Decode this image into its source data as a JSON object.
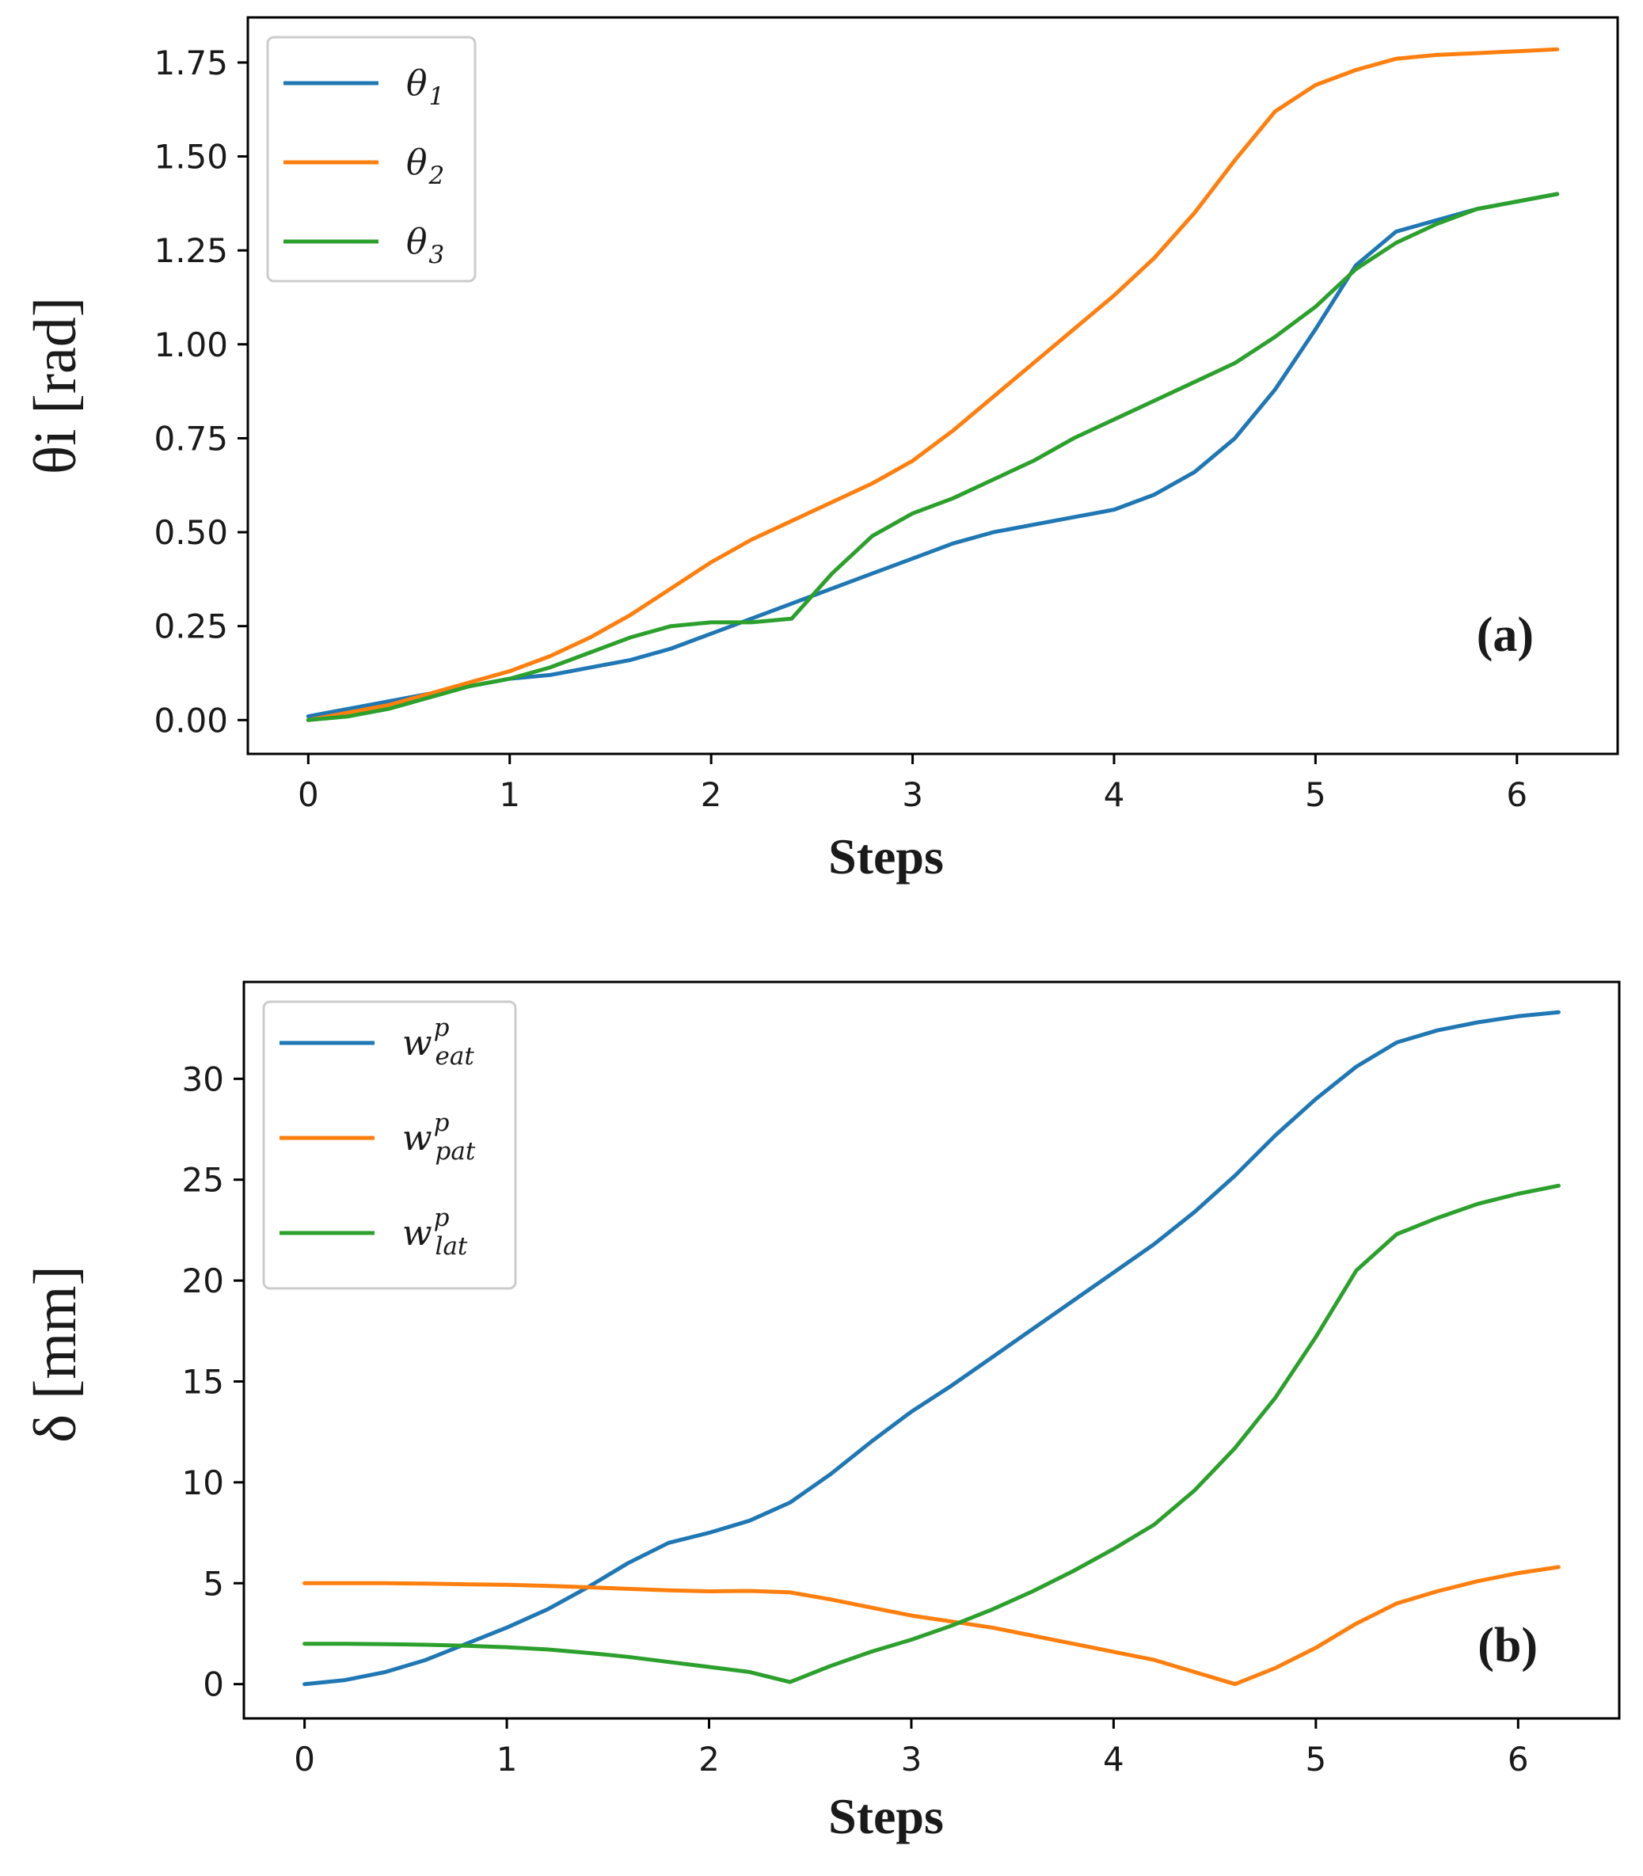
{
  "chart_data": [
    {
      "type": "line",
      "panel_label": "(a)",
      "xlabel": "Steps",
      "ylabel": "θi [rad]",
      "xlim": [
        -0.3,
        6.5
      ],
      "ylim": [
        -0.09,
        1.87
      ],
      "xticks": [
        "0",
        "1",
        "2",
        "3",
        "4",
        "5",
        "6"
      ],
      "yticks": [
        "0.00",
        "0.25",
        "0.50",
        "0.75",
        "1.00",
        "1.25",
        "1.50",
        "1.75"
      ],
      "legend_position": "top-left",
      "x": [
        0,
        0.2,
        0.4,
        0.6,
        0.8,
        1.0,
        1.2,
        1.4,
        1.6,
        1.8,
        2.0,
        2.2,
        2.4,
        2.6,
        2.8,
        3.0,
        3.2,
        3.4,
        3.6,
        3.8,
        4.0,
        4.2,
        4.4,
        4.6,
        4.8,
        5.0,
        5.2,
        5.4,
        5.6,
        5.8,
        6.0,
        6.2
      ],
      "series": [
        {
          "name": "θ",
          "subscript": "1",
          "color": "#1f77b4",
          "values": [
            0.01,
            0.03,
            0.05,
            0.07,
            0.09,
            0.11,
            0.12,
            0.14,
            0.16,
            0.19,
            0.23,
            0.27,
            0.31,
            0.35,
            0.39,
            0.43,
            0.47,
            0.5,
            0.52,
            0.54,
            0.56,
            0.6,
            0.66,
            0.75,
            0.88,
            1.04,
            1.21,
            1.3,
            1.33,
            1.36,
            1.38,
            1.4
          ]
        },
        {
          "name": "θ",
          "subscript": "2",
          "color": "#ff7f0e",
          "values": [
            0.0,
            0.02,
            0.04,
            0.07,
            0.1,
            0.13,
            0.17,
            0.22,
            0.28,
            0.35,
            0.42,
            0.48,
            0.53,
            0.58,
            0.63,
            0.69,
            0.77,
            0.86,
            0.95,
            1.04,
            1.13,
            1.23,
            1.35,
            1.49,
            1.62,
            1.69,
            1.73,
            1.76,
            1.77,
            1.775,
            1.78,
            1.785
          ]
        },
        {
          "name": "θ",
          "subscript": "3",
          "color": "#2ca02c",
          "values": [
            0.0,
            0.01,
            0.03,
            0.06,
            0.09,
            0.11,
            0.14,
            0.18,
            0.22,
            0.25,
            0.26,
            0.26,
            0.27,
            0.39,
            0.49,
            0.55,
            0.59,
            0.64,
            0.69,
            0.75,
            0.8,
            0.85,
            0.9,
            0.95,
            1.02,
            1.1,
            1.2,
            1.27,
            1.32,
            1.36,
            1.38,
            1.4
          ]
        }
      ]
    },
    {
      "type": "line",
      "panel_label": "(b)",
      "xlabel": "Steps",
      "ylabel": "δ [mm]",
      "xlim": [
        -0.3,
        6.5
      ],
      "ylim": [
        -1.7,
        34.8
      ],
      "xticks": [
        "0",
        "1",
        "2",
        "3",
        "4",
        "5",
        "6"
      ],
      "yticks": [
        "0",
        "5",
        "10",
        "15",
        "20",
        "25",
        "30"
      ],
      "legend_position": "top-left",
      "x": [
        0,
        0.2,
        0.4,
        0.6,
        0.8,
        1.0,
        1.2,
        1.4,
        1.6,
        1.8,
        2.0,
        2.2,
        2.4,
        2.6,
        2.8,
        3.0,
        3.2,
        3.4,
        3.6,
        3.8,
        4.0,
        4.2,
        4.4,
        4.6,
        4.8,
        5.0,
        5.2,
        5.4,
        5.6,
        5.8,
        6.0,
        6.2
      ],
      "series": [
        {
          "name": "w",
          "superscript": "p",
          "subscript": "eat",
          "color": "#1f77b4",
          "values": [
            0.0,
            0.2,
            0.6,
            1.2,
            2.0,
            2.8,
            3.7,
            4.8,
            6.0,
            7.0,
            7.5,
            8.1,
            9.0,
            10.4,
            12.0,
            13.5,
            14.8,
            16.2,
            17.6,
            19.0,
            20.4,
            21.8,
            23.4,
            25.2,
            27.2,
            29.0,
            30.6,
            31.8,
            32.4,
            32.8,
            33.1,
            33.3
          ]
        },
        {
          "name": "w",
          "superscript": "p",
          "subscript": "pat",
          "color": "#ff7f0e",
          "values": [
            5.0,
            5.0,
            5.0,
            4.98,
            4.95,
            4.92,
            4.87,
            4.8,
            4.72,
            4.65,
            4.6,
            4.62,
            4.55,
            4.2,
            3.8,
            3.4,
            3.1,
            2.8,
            2.4,
            2.0,
            1.6,
            1.2,
            0.6,
            0.0,
            0.8,
            1.8,
            3.0,
            4.0,
            4.6,
            5.1,
            5.5,
            5.8
          ]
        },
        {
          "name": "w",
          "superscript": "p",
          "subscript": "lat",
          "color": "#2ca02c",
          "values": [
            2.0,
            2.0,
            1.98,
            1.95,
            1.9,
            1.83,
            1.72,
            1.55,
            1.35,
            1.1,
            0.85,
            0.6,
            0.1,
            0.9,
            1.6,
            2.2,
            2.9,
            3.7,
            4.6,
            5.6,
            6.7,
            7.9,
            9.6,
            11.7,
            14.2,
            17.2,
            20.5,
            22.3,
            23.1,
            23.8,
            24.3,
            24.7
          ]
        }
      ]
    }
  ]
}
